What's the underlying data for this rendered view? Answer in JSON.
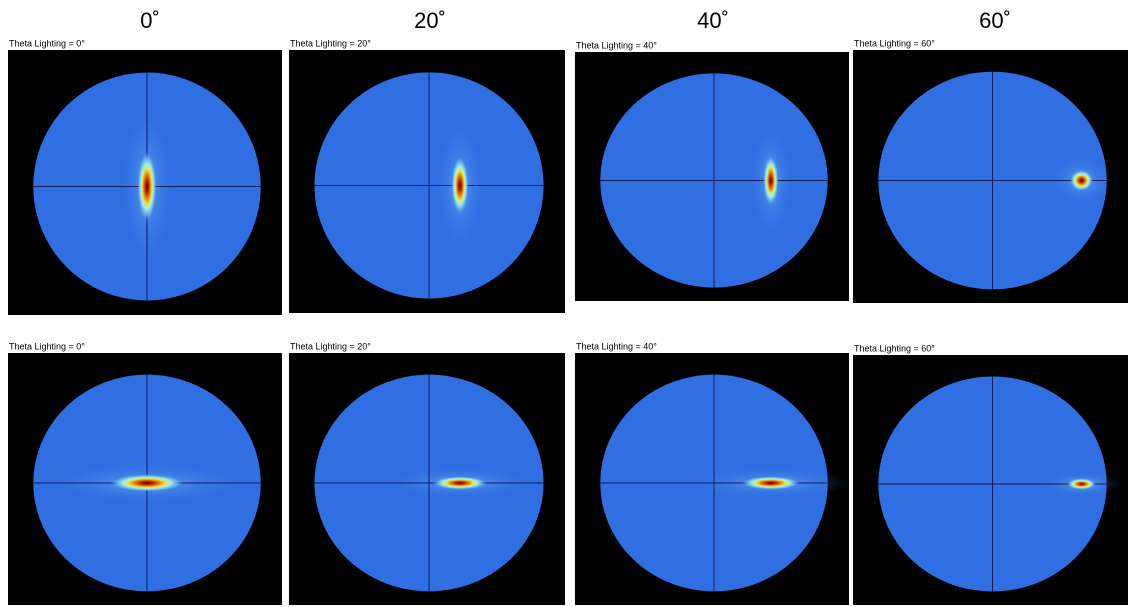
{
  "columns": [
    "0˚",
    "20˚",
    "40˚",
    "60˚"
  ],
  "panels": [
    [
      {
        "label": "Theta Lighting = 0°"
      },
      {
        "label": "Theta Lighting = 20°"
      },
      {
        "label": "Theta Lighting = 40°"
      },
      {
        "label": "Theta Lighting = 60°"
      }
    ],
    [
      {
        "label": "Theta Lighting = 0°"
      },
      {
        "label": "Theta Lighting = 20°"
      },
      {
        "label": "Theta Lighting = 40°"
      },
      {
        "label": "Theta Lighting = 60°"
      }
    ]
  ]
}
